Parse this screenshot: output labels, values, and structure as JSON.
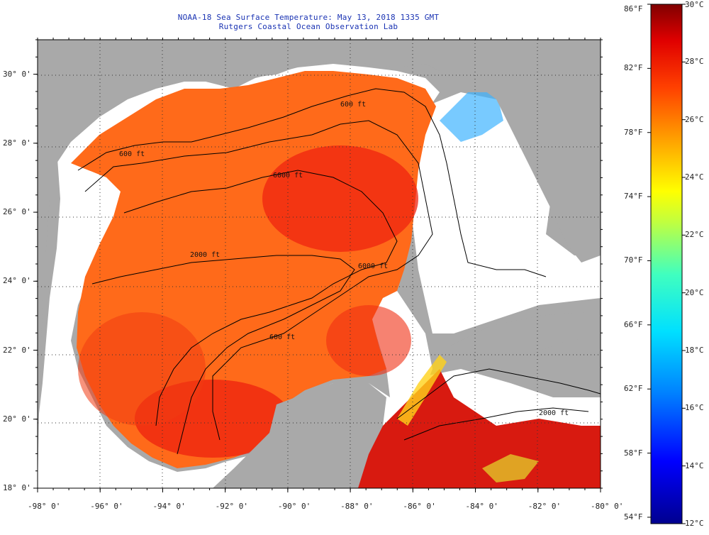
{
  "title": "NOAA-18 Sea Surface Temperature:  May 13, 2018 1335 GMT",
  "subtitle": "Rutgers Coastal Ocean Observation Lab",
  "map": {
    "lat_labels": [
      "30° 0'",
      "28° 0'",
      "26° 0'",
      "24° 0'",
      "22° 0'",
      "20° 0'",
      "18° 0'"
    ],
    "lat_values": [
      30,
      28,
      26,
      24,
      22,
      20,
      18
    ],
    "lon_labels": [
      "-98° 0'",
      "-96° 0'",
      "-94° 0'",
      "-92° 0'",
      "-90° 0'",
      "-88° 0'",
      "-86° 0'",
      "-84° 0'",
      "-82° 0'",
      "-80° 0'"
    ],
    "lon_values": [
      -98,
      -96,
      -94,
      -92,
      -90,
      -88,
      -86,
      -84,
      -82,
      -80
    ],
    "lat_range": [
      18,
      31
    ],
    "lon_range": [
      -98,
      -80
    ],
    "contour_labels": [
      "600 ft",
      "600 ft",
      "6000 ft",
      "2000 ft",
      "6000 ft",
      "600 ft",
      "2000 ft"
    ],
    "colors": {
      "land": "#a9a9a9",
      "cloud": "#ffffff",
      "warm_sea": "#ff6a1a",
      "hot_sea": "#e8160e",
      "grid": "#333333"
    }
  },
  "colorbar": {
    "fahrenheit_labels": [
      "86°F",
      "82°F",
      "78°F",
      "74°F",
      "70°F",
      "66°F",
      "62°F",
      "58°F",
      "54°F"
    ],
    "celsius_labels": [
      "30°C",
      "28°C",
      "26°C",
      "24°C",
      "22°C",
      "20°C",
      "18°C",
      "16°C",
      "14°C",
      "12°C"
    ],
    "celsius_range": [
      12,
      30
    ]
  }
}
